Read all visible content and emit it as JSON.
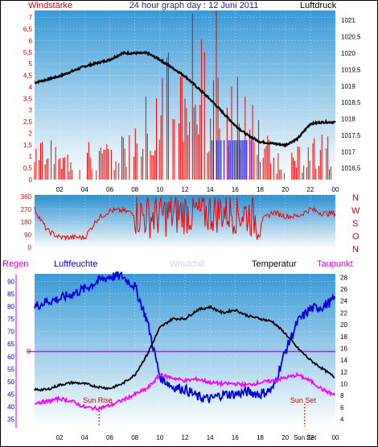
{
  "header": {
    "left_label": "Windstärke",
    "center_label": "24 hour graph day : 12 Juni 2011",
    "right_label": "Luftdruck"
  },
  "panel_direction": {
    "compass_letters": [
      "N",
      "W",
      "S",
      "O",
      "N"
    ]
  },
  "panel_bottom": {
    "labels": {
      "regen": "Regen",
      "luftfeuchte": "Luftfeuchte",
      "windchill": "Windchill",
      "temperatur": "Temperatur",
      "taupunkt": "Taupunkt",
      "sun_rise": "Sun Rise",
      "sun_set": "Sun Set",
      "sun_set_axis": "Sun Set"
    },
    "regen_marker": "0"
  },
  "colors": {
    "wind_red": "#ee0000",
    "gust_blue": "#0000ee",
    "pressure_black": "#000000",
    "humidity_blue": "#0000dd",
    "temperature_black": "#000000",
    "dewpoint_magenta": "#ff00ff",
    "windchill_lightblue": "#c8d8f0",
    "sky_top": "#3a9ad6",
    "sky_bottom": "#ffffff"
  },
  "chart_data": [
    {
      "type": "line",
      "name": "wind_pressure",
      "x_ticks": [
        "02",
        "04",
        "06",
        "08",
        "10",
        "12",
        "14",
        "16",
        "18",
        "20",
        "22",
        "00"
      ],
      "left_ticks": [
        "0",
        "0,5",
        "1",
        "1,5",
        "2",
        "2,5",
        "3",
        "3,5",
        "4",
        "4,5",
        "5",
        "5,5",
        "6",
        "6,5",
        "7"
      ],
      "right_ticks": [
        "1016,5",
        "1017",
        "1017,5",
        "1018",
        "1018,5",
        "1019",
        "1019,5",
        "1020",
        "1020,5",
        "1021"
      ],
      "left_ylim": [
        0,
        7.3
      ],
      "right_ylim": [
        1016.15,
        1021.3
      ],
      "series": [
        {
          "key": "pressure",
          "hours": [
            0,
            2,
            4,
            6,
            7,
            8,
            9,
            10,
            12,
            14,
            16,
            17,
            18,
            19,
            20,
            21,
            22,
            23,
            24
          ],
          "values": [
            1019.1,
            1019.3,
            1019.6,
            1019.8,
            1020.0,
            1020.0,
            1020.0,
            1019.8,
            1019.3,
            1018.6,
            1017.8,
            1017.5,
            1017.3,
            1017.25,
            1017.2,
            1017.4,
            1017.85,
            1017.9,
            1017.9
          ]
        },
        {
          "key": "wind_avg",
          "hours": [
            0,
            1,
            2,
            3,
            4,
            5,
            6,
            7,
            8,
            9,
            10,
            11,
            12,
            13,
            14,
            15,
            16,
            17,
            18,
            19,
            20,
            21,
            22,
            23,
            24
          ],
          "values": [
            1.0,
            1.2,
            0.6,
            0.8,
            1.0,
            0.8,
            1.0,
            1.2,
            1.3,
            2.2,
            3.0,
            3.2,
            3.3,
            3.5,
            3.6,
            3.2,
            2.8,
            2.2,
            1.5,
            1.0,
            0.5,
            0.8,
            1.0,
            1.2,
            1.0
          ]
        },
        {
          "key": "wind_gust_peak",
          "hours": [
            12.6,
            14.5
          ],
          "values": [
            7.2,
            7.3
          ]
        }
      ]
    },
    {
      "type": "line",
      "name": "wind_direction",
      "x_ticks": [
        "02",
        "04",
        "06",
        "08",
        "10",
        "12",
        "14",
        "16",
        "18",
        "20",
        "22",
        "00"
      ],
      "left_ticks": [
        "0",
        "90",
        "180",
        "270",
        "360"
      ],
      "ylim": [
        0,
        360
      ],
      "series": [
        {
          "key": "direction",
          "hours": [
            0,
            1,
            2,
            3,
            4,
            5,
            6,
            7,
            8,
            9,
            10,
            11,
            12,
            13,
            14,
            15,
            16,
            17,
            18,
            19,
            20,
            21,
            22,
            23,
            24
          ],
          "values": [
            270,
            120,
            70,
            70,
            70,
            200,
            260,
            260,
            240,
            220,
            230,
            230,
            250,
            240,
            250,
            260,
            250,
            240,
            180,
            250,
            220,
            220,
            270,
            240,
            240
          ]
        }
      ]
    },
    {
      "type": "line",
      "name": "humidity_temperature",
      "x_ticks": [
        "02",
        "04",
        "06",
        "08",
        "10",
        "12",
        "14",
        "16",
        "18",
        "20",
        "22",
        "00"
      ],
      "left_ticks": [
        "35",
        "40",
        "45",
        "50",
        "55",
        "60",
        "65",
        "70",
        "75",
        "80",
        "85",
        "90"
      ],
      "right_ticks": [
        "4",
        "6",
        "8",
        "10",
        "12",
        "14",
        "16",
        "18",
        "20",
        "22",
        "24",
        "26",
        "28"
      ],
      "left_ylim": [
        32,
        93
      ],
      "right_ylim": [
        2.7,
        28.6
      ],
      "series": [
        {
          "key": "humidity",
          "hours": [
            0,
            1,
            2,
            3,
            4,
            5,
            6,
            7,
            8,
            9,
            10,
            11,
            12,
            13,
            14,
            15,
            16,
            17,
            18,
            19,
            20,
            21,
            22,
            23,
            24
          ],
          "values": [
            80,
            82,
            83,
            85,
            87,
            90,
            92,
            92,
            88,
            74,
            52,
            48,
            47,
            44,
            43,
            45,
            45,
            46,
            45,
            47,
            62,
            74,
            79,
            80,
            83
          ]
        },
        {
          "key": "temperature",
          "hours": [
            0,
            1,
            2,
            3,
            4,
            5,
            6,
            7,
            8,
            9,
            10,
            11,
            12,
            13,
            14,
            15,
            16,
            17,
            18,
            19,
            20,
            21,
            22,
            23,
            24
          ],
          "values": [
            9.0,
            9.0,
            9.8,
            10.2,
            10.0,
            9.5,
            9.2,
            10.0,
            11.5,
            15.0,
            19.5,
            21.0,
            21.0,
            22.5,
            23.0,
            22.0,
            22.5,
            21.5,
            21.0,
            20.5,
            18.5,
            16.0,
            14.0,
            12.5,
            11.0
          ]
        },
        {
          "key": "dewpoint",
          "hours": [
            0,
            1,
            2,
            3,
            4,
            5,
            6,
            7,
            8,
            9,
            10,
            11,
            12,
            13,
            14,
            15,
            16,
            17,
            18,
            19,
            20,
            21,
            22,
            23,
            24
          ],
          "values": [
            6.8,
            7.0,
            7.5,
            7.0,
            6.0,
            5.8,
            6.3,
            7.2,
            8.2,
            9.2,
            11.5,
            11.0,
            10.5,
            10.8,
            10.2,
            10.0,
            10.0,
            9.8,
            10.2,
            10.5,
            11.0,
            11.5,
            10.5,
            9.0,
            8.0
          ]
        }
      ],
      "regen_line_value": 0,
      "sun_rise_hour": 5.15,
      "sun_set_hour": 21.55
    }
  ]
}
